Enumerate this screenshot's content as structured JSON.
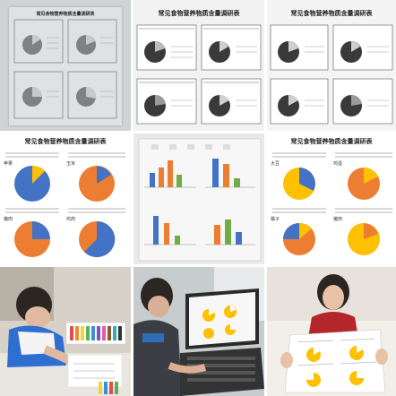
{
  "tiles": {
    "t1": {
      "title": "常见食物营养物质含量调研表",
      "kind": "printed-table-photo"
    },
    "t2": {
      "title": "常见食物营养物质含量调研表",
      "kind": "printed-sheet-dark-pies"
    },
    "t3": {
      "title": "常见食物营养物质含量调研表",
      "kind": "printed-sheet-dark-pies"
    },
    "t4": {
      "title": "常见食物营养物质含量调研表",
      "kind": "printed-sheet-color-pies",
      "labels": [
        "苹果",
        "玉米",
        "猪肉",
        "鸡肉"
      ]
    },
    "t5": {
      "title": "",
      "kind": "bar-chart-sheet"
    },
    "t6": {
      "title": "常见食物营养物质含量调研表",
      "kind": "printed-sheet-color-pies",
      "labels": [
        "大豆",
        "鸡蛋",
        "橘子",
        "猪肉"
      ]
    },
    "t7": {
      "kind": "child-drawing-with-markers"
    },
    "t8": {
      "kind": "child-at-laptop"
    },
    "t9": {
      "kind": "child-holding-sheet"
    }
  },
  "colors": {
    "pie_blue": "#4472c4",
    "pie_orange": "#ed7d31",
    "pie_yellow": "#ffc000",
    "pie_dark": "#3a3a3a",
    "pie_gray": "#9a9a9a",
    "bar_blue": "#4472c4",
    "bar_orange": "#ed7d31",
    "bar_green": "#70ad47"
  }
}
